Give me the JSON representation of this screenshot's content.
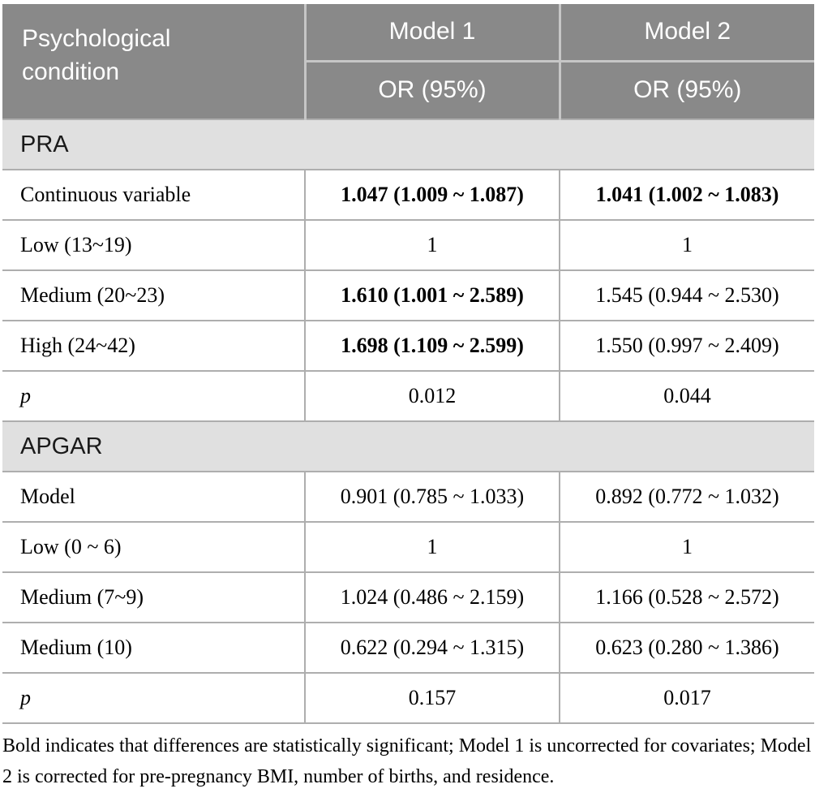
{
  "table": {
    "header": {
      "condition_label": "Psychological condition",
      "model1_label": "Model 1",
      "model2_label": "Model 2",
      "model1_or_label": "OR (95%)",
      "model2_or_label": "OR (95%)"
    },
    "sections": [
      {
        "title": "PRA",
        "rows": [
          {
            "label": "Continuous variable",
            "m1": "1.047 (1.009 ~ 1.087)",
            "m1_bold": true,
            "m2": "1.041 (1.002 ~ 1.083)",
            "m2_bold": true
          },
          {
            "label": "Low (13~19)",
            "m1": "1",
            "m2": "1"
          },
          {
            "label": "Medium (20~23)",
            "m1": "1.610 (1.001 ~ 2.589)",
            "m1_bold": true,
            "m2": "1.545 (0.944 ~ 2.530)"
          },
          {
            "label": "High (24~42)",
            "m1": "1.698 (1.109 ~ 2.599)",
            "m1_bold": true,
            "m2": "1.550 (0.997 ~ 2.409)"
          },
          {
            "label": "p",
            "italic": true,
            "m1": "0.012",
            "m2": "0.044"
          }
        ]
      },
      {
        "title": "APGAR",
        "rows": [
          {
            "label": "Model",
            "m1": "0.901 (0.785 ~ 1.033)",
            "m2": "0.892 (0.772 ~ 1.032)"
          },
          {
            "label": "Low (0 ~ 6)",
            "m1": "1",
            "m2": "1"
          },
          {
            "label": "Medium (7~9)",
            "m1": "1.024 (0.486 ~ 2.159)",
            "m2": "1.166 (0.528 ~ 2.572)"
          },
          {
            "label": "Medium (10)",
            "m1": "0.622 (0.294 ~ 1.315)",
            "m2": "0.623 (0.280 ~ 1.386)"
          },
          {
            "label": "p",
            "italic": true,
            "m1": "0.157",
            "m2": "0.017"
          }
        ]
      }
    ]
  },
  "footnote": "Bold indicates that differences are statistically significant; Model 1 is uncorrected for covariates; Model 2 is corrected for pre-pregnancy BMI, number of births, and residence.",
  "colors": {
    "header_bg": "#898989",
    "header_text": "#ffffff",
    "header_divider": "#c6c6c6",
    "section_bg": "#e0e0e0",
    "section_text": "#1a1a1a",
    "body_border": "#aeaeae",
    "body_text": "#000000",
    "page_bg": "#ffffff"
  }
}
